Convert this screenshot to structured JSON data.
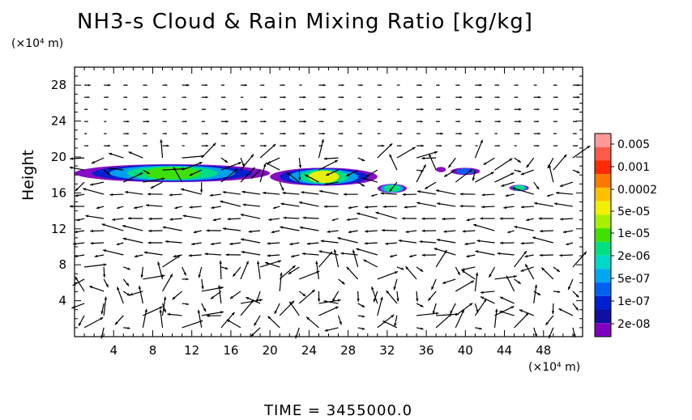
{
  "chart_data": {
    "type": "heatmap",
    "title": "NH3-s Cloud & Rain Mixing Ratio [kg/kg]",
    "ylabel": "Height",
    "y_unit": "(×10⁴ m)",
    "x_unit": "(×10⁴ m)",
    "xlim": [
      0,
      52
    ],
    "ylim": [
      0,
      30
    ],
    "x_ticks": [
      "4",
      "8",
      "12",
      "16",
      "20",
      "24",
      "28",
      "32",
      "36",
      "40",
      "44",
      "48"
    ],
    "y_ticks": [
      "4",
      "8",
      "12",
      "16",
      "20",
      "24",
      "28"
    ],
    "x_tick_values": [
      4,
      8,
      12,
      16,
      20,
      24,
      28,
      32,
      36,
      40,
      44,
      48
    ],
    "y_tick_values": [
      4,
      8,
      12,
      16,
      20,
      24,
      28
    ],
    "colorbar": {
      "labels": [
        "0.005",
        "0.001",
        "0.0002",
        "5e-05",
        "1e-05",
        "2e-06",
        "5e-07",
        "1e-07",
        "2e-08"
      ],
      "colors": [
        "#ff9999",
        "#ff5a4a",
        "#ff2a00",
        "#ff7800",
        "#ffc000",
        "#f0f000",
        "#a8f000",
        "#40e000",
        "#00e080",
        "#00d8c8",
        "#00a8f0",
        "#0060f0",
        "#0020d0",
        "#1010a0",
        "#8000c0"
      ]
    },
    "cloud_regions": [
      {
        "x": [
          0,
          20
        ],
        "y": [
          17.2,
          19.2
        ],
        "peak": "1e-05"
      },
      {
        "x": [
          20,
          31
        ],
        "y": [
          16.8,
          18.8
        ],
        "peak": "5e-05"
      },
      {
        "x": [
          31,
          34
        ],
        "y": [
          16.0,
          17.0
        ],
        "peak": "2e-06"
      },
      {
        "x": [
          37,
          38
        ],
        "y": [
          18.3,
          18.9
        ],
        "peak": "2e-08"
      },
      {
        "x": [
          38.5,
          41.5
        ],
        "y": [
          18.0,
          18.8
        ],
        "peak": "1e-07"
      },
      {
        "x": [
          44.5,
          46.5
        ],
        "y": [
          16.2,
          16.9
        ],
        "peak": "2e-06"
      }
    ],
    "vectors": "wind field"
  },
  "footer": {
    "time_text": "TIME  =  3455000.0"
  }
}
